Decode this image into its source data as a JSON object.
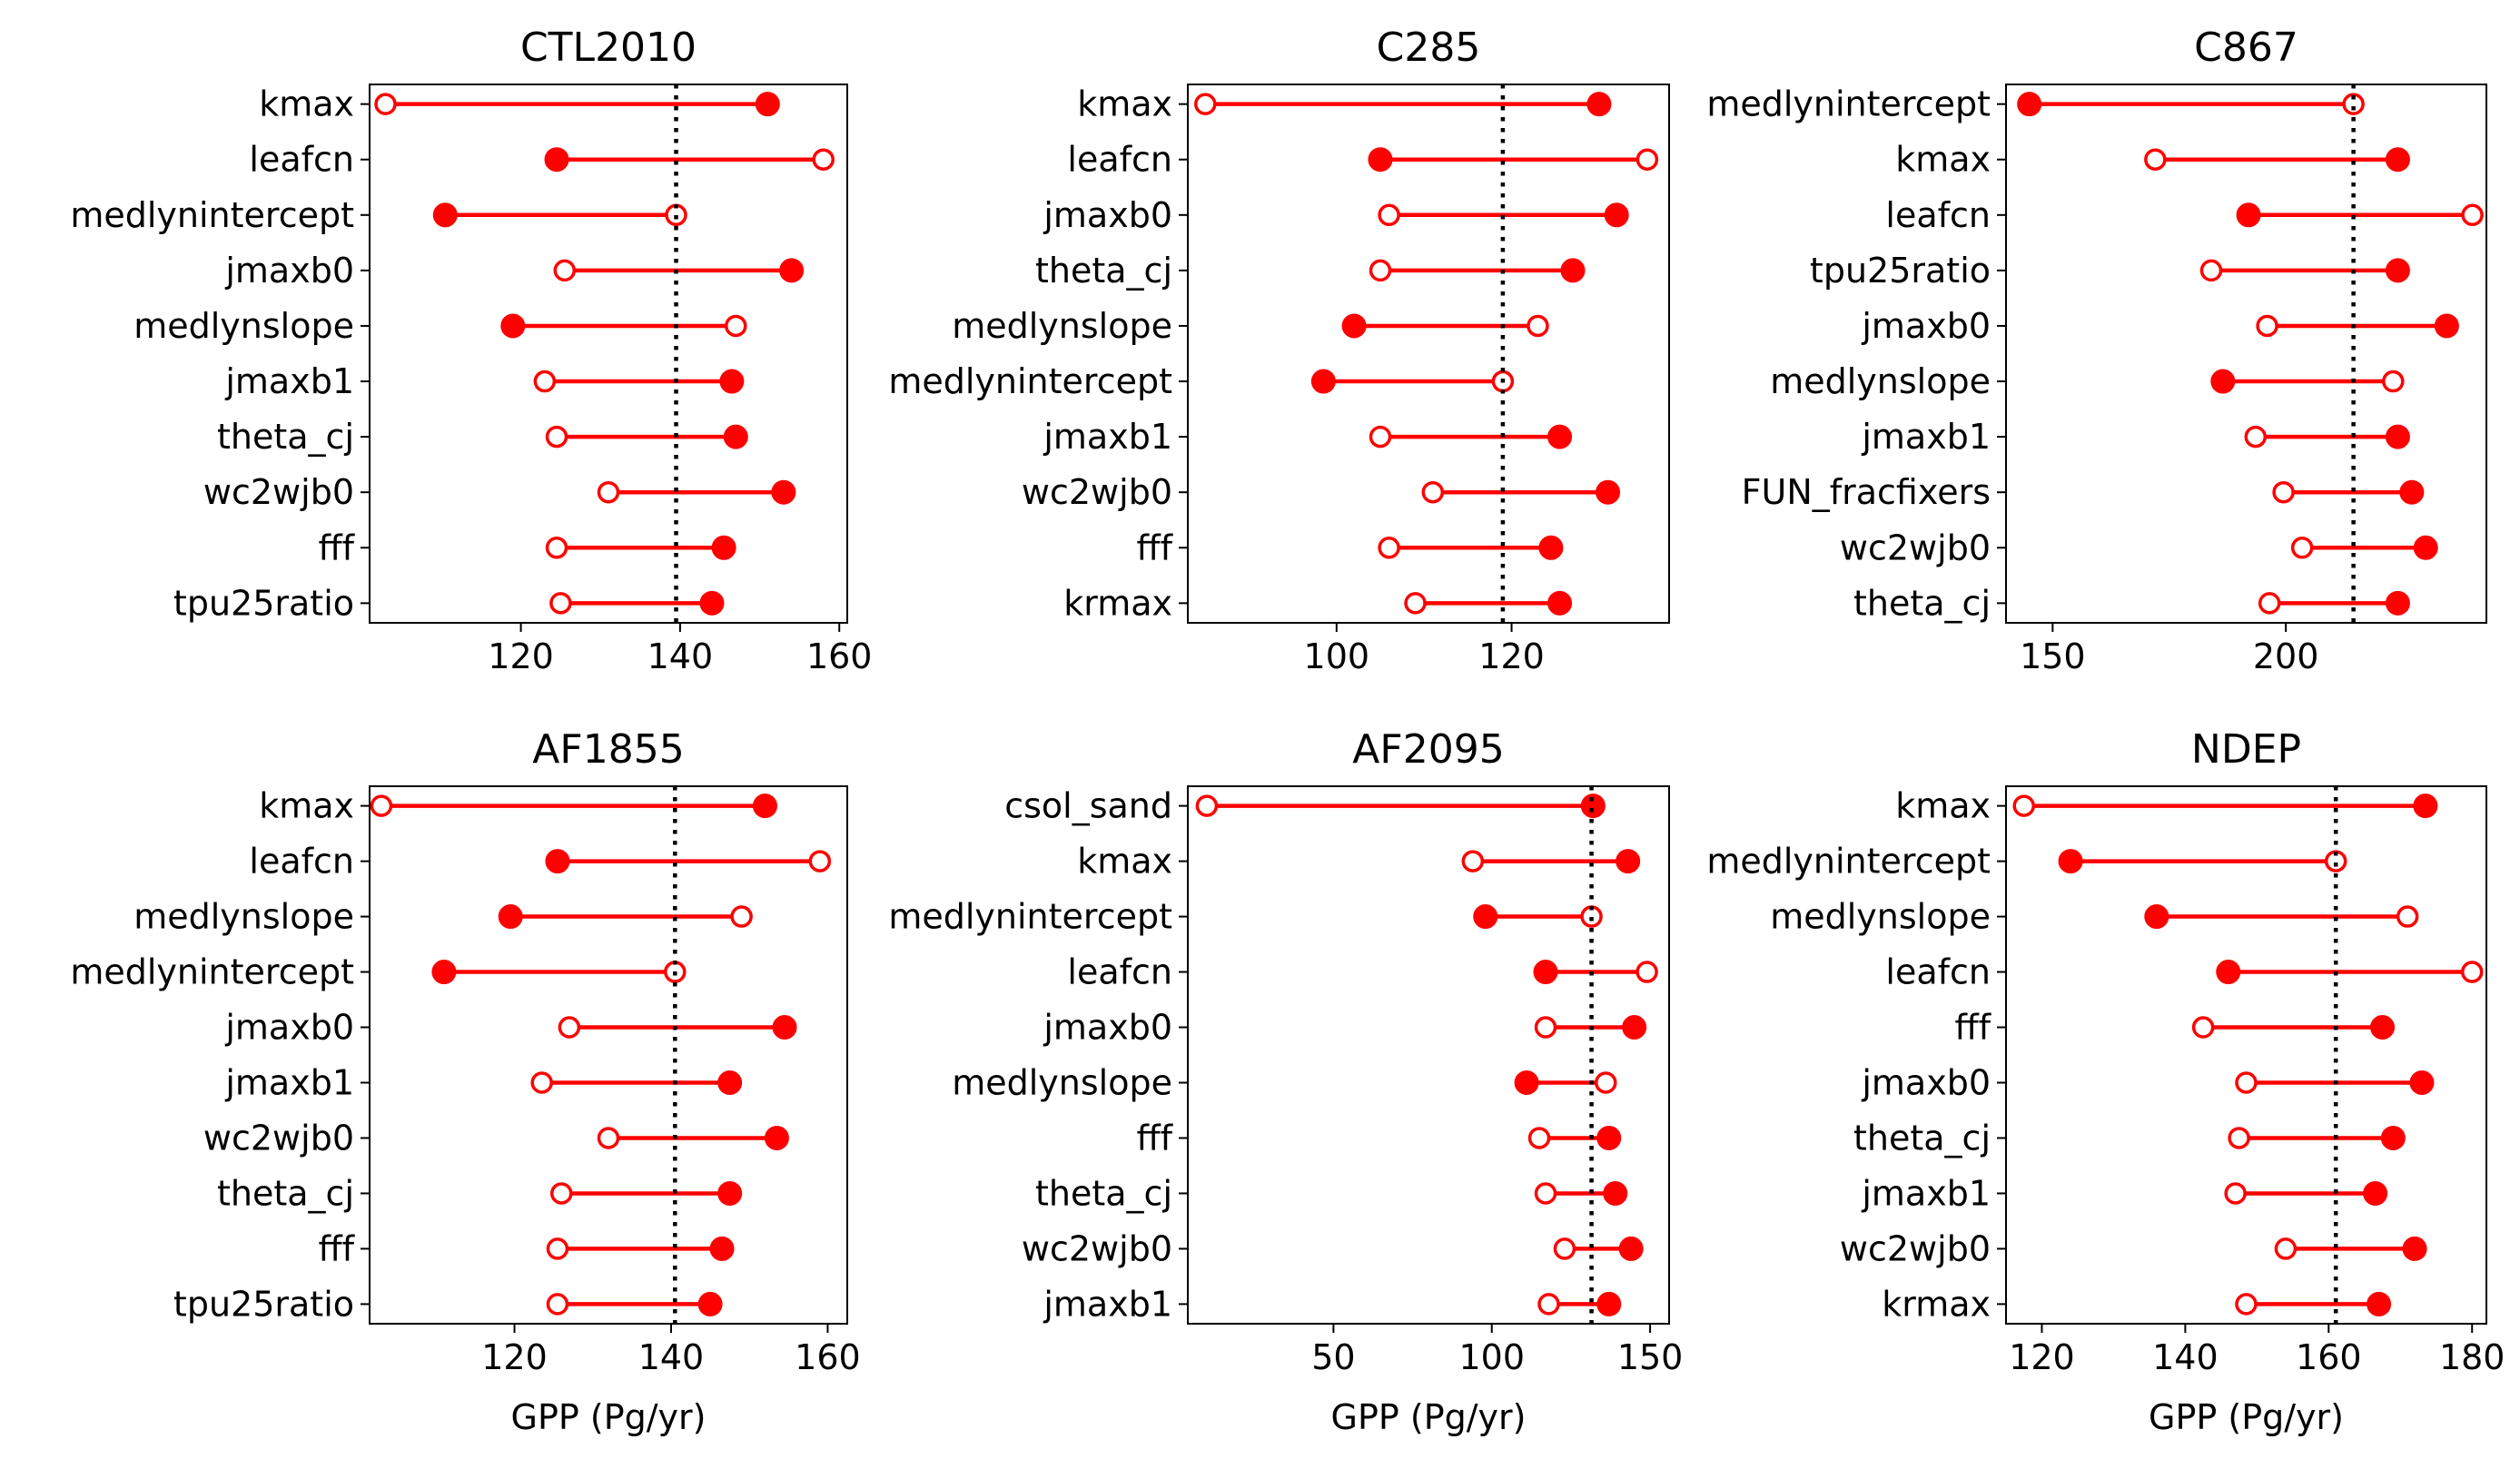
{
  "chart_data": [
    {
      "type": "dumbbell",
      "title": "CTL2010",
      "xlabel": "",
      "xlim": [
        101,
        161
      ],
      "xticks": [
        120,
        140,
        160
      ],
      "reference_line": 139.5,
      "categories": [
        "kmax",
        "leafcn",
        "medlynintercept",
        "jmaxb0",
        "medlynslope",
        "jmaxb1",
        "theta_cj",
        "wc2wjb0",
        "fff",
        "tpu25ratio"
      ],
      "series": [
        {
          "marker": "open",
          "values": [
            103,
            158,
            139.5,
            125.5,
            147,
            123,
            124.5,
            131,
            124.5,
            125
          ]
        },
        {
          "marker": "filled",
          "values": [
            151,
            124.5,
            110.5,
            154,
            119,
            146.5,
            147,
            153,
            145.5,
            144
          ]
        }
      ]
    },
    {
      "type": "dumbbell",
      "title": "C285",
      "xlabel": "",
      "xlim": [
        83,
        138
      ],
      "xticks": [
        100,
        120
      ],
      "reference_line": 119,
      "categories": [
        "kmax",
        "leafcn",
        "jmaxb0",
        "theta_cj",
        "medlynslope",
        "medlynintercept",
        "jmaxb1",
        "wc2wjb0",
        "fff",
        "krmax"
      ],
      "series": [
        {
          "marker": "open",
          "values": [
            85,
            135.5,
            106,
            105,
            123,
            119,
            105,
            111,
            106,
            109
          ]
        },
        {
          "marker": "filled",
          "values": [
            130,
            105,
            132,
            127,
            102,
            98.5,
            125.5,
            131,
            124.5,
            125.5
          ]
        }
      ]
    },
    {
      "type": "dumbbell",
      "title": "C867",
      "xlabel": "",
      "xlim": [
        140,
        243
      ],
      "xticks": [
        150,
        200
      ],
      "reference_line": 214.5,
      "categories": [
        "medlynintercept",
        "kmax",
        "leafcn",
        "tpu25ratio",
        "jmaxb0",
        "medlynslope",
        "jmaxb1",
        "FUN_fracfixers",
        "wc2wjb0",
        "theta_cj"
      ],
      "series": [
        {
          "marker": "open",
          "values": [
            214.5,
            172,
            240,
            184,
            196,
            223,
            193.5,
            199.5,
            203.5,
            196.5
          ]
        },
        {
          "marker": "filled",
          "values": [
            145,
            224,
            192,
            224,
            234.5,
            186.5,
            224,
            227,
            230,
            224
          ]
        }
      ]
    },
    {
      "type": "dumbbell",
      "title": "AF1855",
      "xlabel": "GPP (Pg/yr)",
      "xlim": [
        101.5,
        162.5
      ],
      "xticks": [
        120,
        140,
        160
      ],
      "reference_line": 140.5,
      "categories": [
        "kmax",
        "leafcn",
        "medlynslope",
        "medlynintercept",
        "jmaxb0",
        "jmaxb1",
        "wc2wjb0",
        "theta_cj",
        "fff",
        "tpu25ratio"
      ],
      "series": [
        {
          "marker": "open",
          "values": [
            103,
            159,
            149,
            140.5,
            127,
            123.5,
            132,
            126,
            125.5,
            125.5
          ]
        },
        {
          "marker": "filled",
          "values": [
            152,
            125.5,
            119.5,
            111,
            154.5,
            147.5,
            153.5,
            147.5,
            146.5,
            145
          ]
        }
      ]
    },
    {
      "type": "dumbbell",
      "title": "AF2095",
      "xlabel": "GPP (Pg/yr)",
      "xlim": [
        4,
        156
      ],
      "xticks": [
        50,
        100,
        150
      ],
      "reference_line": 131.5,
      "categories": [
        "csol_sand",
        "kmax",
        "medlynintercept",
        "leafcn",
        "jmaxb0",
        "medlynslope",
        "fff",
        "theta_cj",
        "wc2wjb0",
        "jmaxb1"
      ],
      "series": [
        {
          "marker": "open",
          "values": [
            10,
            94,
            131.5,
            149,
            117,
            136,
            115,
            117,
            123,
            118
          ]
        },
        {
          "marker": "filled",
          "values": [
            132,
            143,
            98,
            117,
            145,
            111,
            137,
            139,
            144,
            137
          ]
        }
      ]
    },
    {
      "type": "dumbbell",
      "title": "NDEP",
      "xlabel": "GPP (Pg/yr)",
      "xlim": [
        115,
        182
      ],
      "xticks": [
        120,
        140,
        160,
        180
      ],
      "reference_line": 161,
      "categories": [
        "kmax",
        "medlynintercept",
        "medlynslope",
        "leafcn",
        "fff",
        "jmaxb0",
        "theta_cj",
        "jmaxb1",
        "wc2wjb0",
        "krmax"
      ],
      "series": [
        {
          "marker": "open",
          "values": [
            117.5,
            161,
            171,
            180,
            142.5,
            148.5,
            147.5,
            147,
            154,
            148.5
          ]
        },
        {
          "marker": "filled",
          "values": [
            173.5,
            124,
            136,
            146,
            167.5,
            173,
            169,
            166.5,
            172,
            167
          ]
        }
      ]
    }
  ],
  "colors": {
    "series": "#ff0000",
    "reference_line": "#000000",
    "axes": "#000000"
  }
}
